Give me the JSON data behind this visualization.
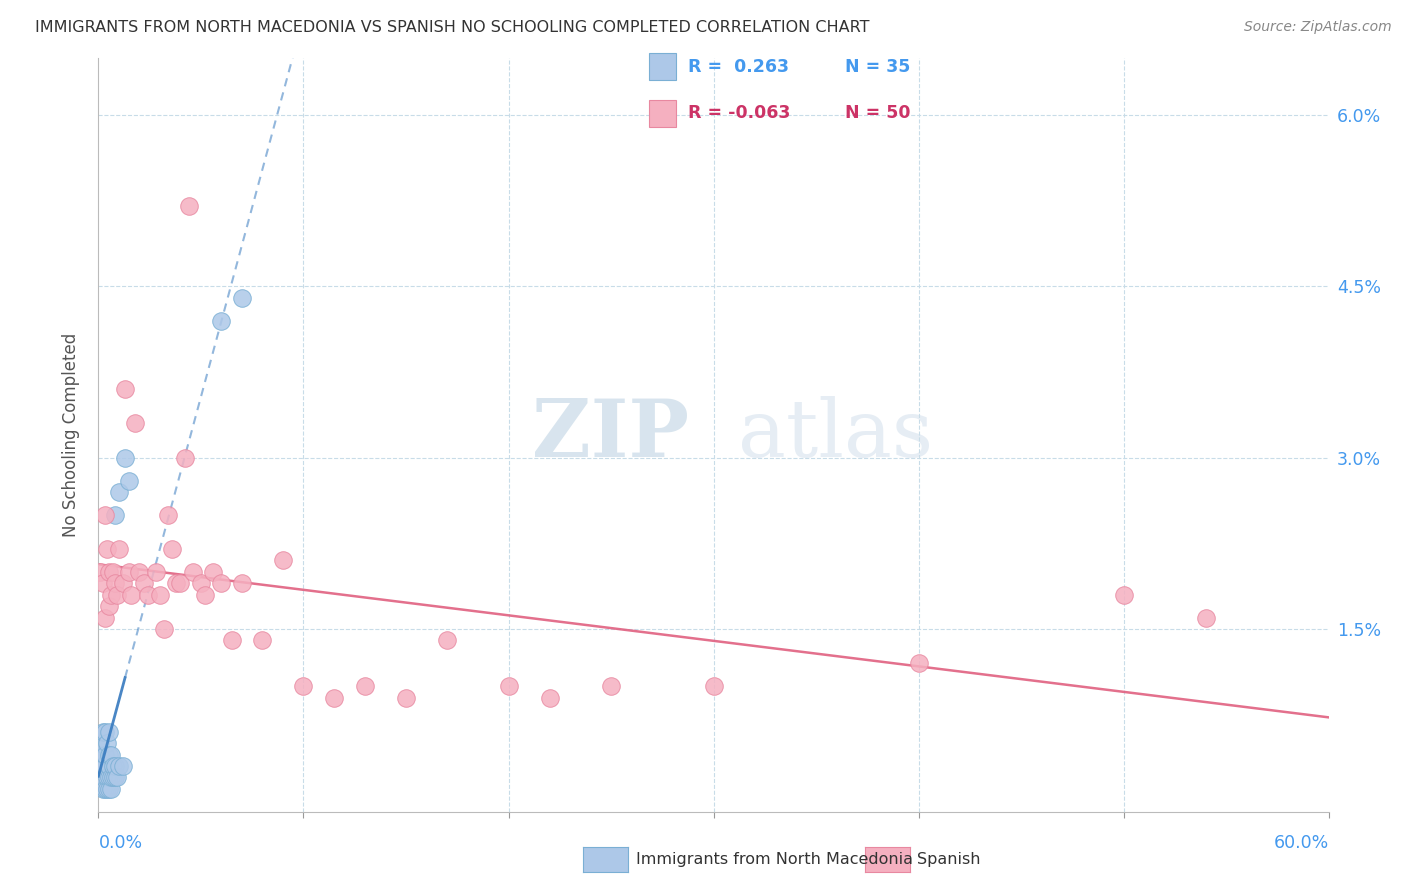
{
  "title": "IMMIGRANTS FROM NORTH MACEDONIA VS SPANISH NO SCHOOLING COMPLETED CORRELATION CHART",
  "source": "Source: ZipAtlas.com",
  "ylabel": "No Schooling Completed",
  "xlim": [
    0.0,
    0.6
  ],
  "ylim": [
    -0.001,
    0.065
  ],
  "ytick_vals": [
    0.015,
    0.03,
    0.045,
    0.06
  ],
  "ytick_labels": [
    "1.5%",
    "3.0%",
    "4.5%",
    "6.0%"
  ],
  "legend_label1": "Immigrants from North Macedonia",
  "legend_label2": "Spanish",
  "blue_color": "#adc8e8",
  "pink_color": "#f5b0c0",
  "blue_edge": "#7aafd4",
  "pink_edge": "#e888a0",
  "blue_line_color": "#3a7cc0",
  "pink_line_color": "#e06080",
  "watermark_zip": "ZIP",
  "watermark_atlas": "atlas",
  "blue_x": [
    0.001,
    0.001,
    0.001,
    0.002,
    0.002,
    0.002,
    0.002,
    0.003,
    0.003,
    0.003,
    0.003,
    0.004,
    0.004,
    0.004,
    0.005,
    0.005,
    0.005,
    0.005,
    0.005,
    0.006,
    0.006,
    0.006,
    0.007,
    0.007,
    0.008,
    0.008,
    0.008,
    0.009,
    0.01,
    0.01,
    0.012,
    0.013,
    0.015,
    0.06,
    0.07
  ],
  "blue_y": [
    0.003,
    0.004,
    0.005,
    0.001,
    0.002,
    0.003,
    0.006,
    0.001,
    0.003,
    0.004,
    0.006,
    0.001,
    0.002,
    0.005,
    0.001,
    0.002,
    0.003,
    0.004,
    0.006,
    0.001,
    0.002,
    0.004,
    0.002,
    0.003,
    0.002,
    0.003,
    0.025,
    0.002,
    0.003,
    0.027,
    0.003,
    0.03,
    0.028,
    0.042,
    0.044
  ],
  "pink_x": [
    0.001,
    0.002,
    0.003,
    0.003,
    0.004,
    0.005,
    0.005,
    0.006,
    0.007,
    0.008,
    0.009,
    0.01,
    0.012,
    0.013,
    0.015,
    0.016,
    0.018,
    0.02,
    0.022,
    0.024,
    0.028,
    0.03,
    0.032,
    0.034,
    0.036,
    0.038,
    0.04,
    0.042,
    0.044,
    0.046,
    0.05,
    0.052,
    0.056,
    0.06,
    0.065,
    0.07,
    0.08,
    0.09,
    0.1,
    0.115,
    0.13,
    0.15,
    0.17,
    0.2,
    0.22,
    0.25,
    0.3,
    0.4,
    0.5,
    0.54
  ],
  "pink_y": [
    0.02,
    0.019,
    0.016,
    0.025,
    0.022,
    0.02,
    0.017,
    0.018,
    0.02,
    0.019,
    0.018,
    0.022,
    0.019,
    0.036,
    0.02,
    0.018,
    0.033,
    0.02,
    0.019,
    0.018,
    0.02,
    0.018,
    0.015,
    0.025,
    0.022,
    0.019,
    0.019,
    0.03,
    0.052,
    0.02,
    0.019,
    0.018,
    0.02,
    0.019,
    0.014,
    0.019,
    0.014,
    0.021,
    0.01,
    0.009,
    0.01,
    0.009,
    0.014,
    0.01,
    0.009,
    0.01,
    0.01,
    0.012,
    0.018,
    0.016
  ]
}
